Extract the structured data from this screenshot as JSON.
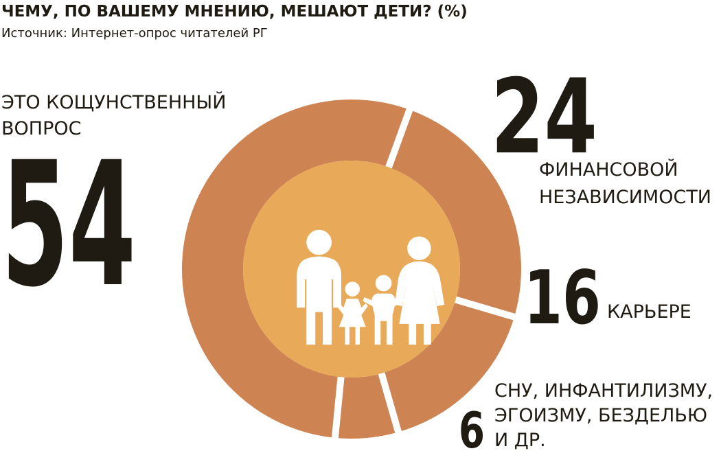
{
  "title": "ЧЕМУ, ПО ВАШЕМУ МНЕНИЮ, МЕШАЮТ ДЕТИ? (%)",
  "subtitle": "Источник: Интернет-опрос читателей РГ",
  "colors": {
    "ring": "#cd8352",
    "center": "#e8a958",
    "text": "#1f1a12",
    "background": "#ffffff",
    "icon": "#ffffff"
  },
  "icon": "family-icon",
  "chart_data": {
    "type": "pie",
    "variant": "donut",
    "title": "ЧЕМУ, ПО ВАШЕМУ МНЕНИЮ, МЕШАЮТ ДЕТИ? (%)",
    "slices": [
      {
        "label_lines": [
          "ФИНАНСОВОЙ",
          "НЕЗАВИСИМОСТИ"
        ],
        "value": 24
      },
      {
        "label_lines": [
          "КАРЬЕРЕ"
        ],
        "value": 16
      },
      {
        "label_lines": [
          "СНУ, ИНФАНТИЛИЗМУ,",
          "ЭГОИЗМУ, БЕЗДЕЛЬЮ",
          "И ДР."
        ],
        "value": 6
      },
      {
        "label_lines": [
          "ЭТО КОЩУНСТВЕННЫЙ",
          "ВОПРОС"
        ],
        "value": 54
      }
    ]
  }
}
